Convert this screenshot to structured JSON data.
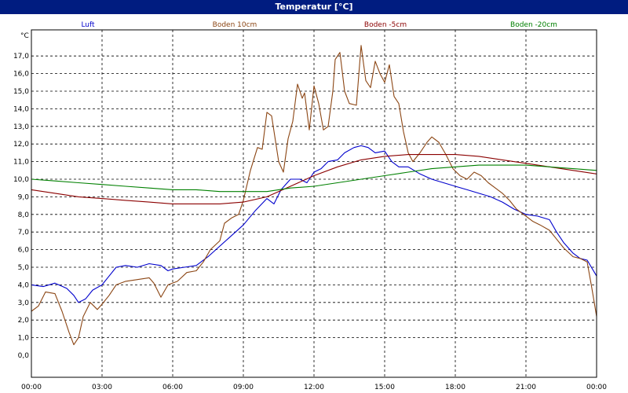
{
  "window": {
    "title": "Temperatur [°C]"
  },
  "chart_data": {
    "type": "line",
    "title": "Temperatur [°C]",
    "ylabel": "°C",
    "ylim": [
      0,
      18
    ],
    "xlim_hours": [
      0,
      24
    ],
    "grid": true,
    "legend_position": "top",
    "y_ticks": [
      "0,0",
      "1,0",
      "2,0",
      "3,0",
      "4,0",
      "5,0",
      "6,0",
      "7,0",
      "8,0",
      "9,0",
      "10,0",
      "11,0",
      "12,0",
      "13,0",
      "14,0",
      "15,0",
      "16,0",
      "17,0"
    ],
    "x_ticks": [
      {
        "time": "00:00",
        "date": "06.05.21"
      },
      {
        "time": "03:00",
        "date": "06.05.21"
      },
      {
        "time": "06:00",
        "date": "06.05.21"
      },
      {
        "time": "09:00",
        "date": "06.05.21"
      },
      {
        "time": "12:00",
        "date": "06.05.21"
      },
      {
        "time": "15:00",
        "date": "06.05.21"
      },
      {
        "time": "18:00",
        "date": "06.05.21"
      },
      {
        "time": "21:00",
        "date": "06.05.21"
      },
      {
        "time": "00:00",
        "date": "07.05.21"
      }
    ],
    "series": [
      {
        "name": "Luft",
        "color": "#0000cc",
        "points": [
          [
            0,
            4.0
          ],
          [
            0.5,
            3.9
          ],
          [
            1.0,
            4.1
          ],
          [
            1.5,
            3.8
          ],
          [
            1.8,
            3.4
          ],
          [
            2.0,
            3.0
          ],
          [
            2.3,
            3.2
          ],
          [
            2.6,
            3.7
          ],
          [
            3.0,
            4.0
          ],
          [
            3.3,
            4.5
          ],
          [
            3.6,
            5.0
          ],
          [
            4.0,
            5.1
          ],
          [
            4.5,
            5.0
          ],
          [
            5.0,
            5.2
          ],
          [
            5.5,
            5.1
          ],
          [
            5.8,
            4.8
          ],
          [
            6.0,
            4.9
          ],
          [
            6.5,
            5.0
          ],
          [
            7.0,
            5.1
          ],
          [
            7.5,
            5.6
          ],
          [
            8.0,
            6.2
          ],
          [
            8.5,
            6.8
          ],
          [
            9.0,
            7.4
          ],
          [
            9.5,
            8.2
          ],
          [
            10.0,
            8.9
          ],
          [
            10.3,
            8.6
          ],
          [
            10.6,
            9.4
          ],
          [
            11.0,
            10.0
          ],
          [
            11.4,
            10.0
          ],
          [
            11.7,
            9.8
          ],
          [
            12.0,
            10.4
          ],
          [
            12.3,
            10.6
          ],
          [
            12.6,
            11.0
          ],
          [
            13.0,
            11.1
          ],
          [
            13.3,
            11.5
          ],
          [
            13.7,
            11.8
          ],
          [
            14.0,
            11.9
          ],
          [
            14.3,
            11.8
          ],
          [
            14.6,
            11.5
          ],
          [
            15.0,
            11.6
          ],
          [
            15.3,
            11.0
          ],
          [
            15.6,
            10.7
          ],
          [
            16.0,
            10.7
          ],
          [
            16.5,
            10.3
          ],
          [
            17.0,
            10.0
          ],
          [
            17.5,
            9.8
          ],
          [
            18.0,
            9.6
          ],
          [
            18.5,
            9.4
          ],
          [
            19.0,
            9.2
          ],
          [
            19.5,
            9.0
          ],
          [
            20.0,
            8.7
          ],
          [
            20.5,
            8.3
          ],
          [
            21.0,
            8.0
          ],
          [
            21.5,
            7.9
          ],
          [
            22.0,
            7.7
          ],
          [
            22.3,
            7.0
          ],
          [
            22.6,
            6.4
          ],
          [
            23.0,
            5.8
          ],
          [
            23.3,
            5.5
          ],
          [
            23.6,
            5.4
          ],
          [
            24.0,
            4.5
          ]
        ]
      },
      {
        "name": "Boden 10cm",
        "color": "#8b4513",
        "points": [
          [
            0,
            2.5
          ],
          [
            0.3,
            2.8
          ],
          [
            0.6,
            3.6
          ],
          [
            1.0,
            3.5
          ],
          [
            1.3,
            2.5
          ],
          [
            1.6,
            1.3
          ],
          [
            1.8,
            0.6
          ],
          [
            2.0,
            1.0
          ],
          [
            2.2,
            2.2
          ],
          [
            2.5,
            3.0
          ],
          [
            2.8,
            2.6
          ],
          [
            3.0,
            2.9
          ],
          [
            3.3,
            3.4
          ],
          [
            3.6,
            4.0
          ],
          [
            4.0,
            4.2
          ],
          [
            4.5,
            4.3
          ],
          [
            5.0,
            4.4
          ],
          [
            5.2,
            4.1
          ],
          [
            5.5,
            3.3
          ],
          [
            5.8,
            4.0
          ],
          [
            6.2,
            4.2
          ],
          [
            6.6,
            4.7
          ],
          [
            7.0,
            4.8
          ],
          [
            7.3,
            5.3
          ],
          [
            7.6,
            6.0
          ],
          [
            8.0,
            6.5
          ],
          [
            8.2,
            7.5
          ],
          [
            8.5,
            7.8
          ],
          [
            8.8,
            8.0
          ],
          [
            9.0,
            8.8
          ],
          [
            9.3,
            10.5
          ],
          [
            9.6,
            11.8
          ],
          [
            9.8,
            11.7
          ],
          [
            10.0,
            13.8
          ],
          [
            10.2,
            13.6
          ],
          [
            10.5,
            11.0
          ],
          [
            10.7,
            10.4
          ],
          [
            10.9,
            12.3
          ],
          [
            11.1,
            13.3
          ],
          [
            11.3,
            15.4
          ],
          [
            11.5,
            14.6
          ],
          [
            11.6,
            14.9
          ],
          [
            11.8,
            12.8
          ],
          [
            12.0,
            15.3
          ],
          [
            12.2,
            14.3
          ],
          [
            12.4,
            12.8
          ],
          [
            12.6,
            13.0
          ],
          [
            12.8,
            15.0
          ],
          [
            12.9,
            16.8
          ],
          [
            13.1,
            17.2
          ],
          [
            13.3,
            15.0
          ],
          [
            13.5,
            14.3
          ],
          [
            13.8,
            14.2
          ],
          [
            14.0,
            17.6
          ],
          [
            14.2,
            15.6
          ],
          [
            14.4,
            15.2
          ],
          [
            14.6,
            16.7
          ],
          [
            14.8,
            16.0
          ],
          [
            15.0,
            15.5
          ],
          [
            15.2,
            16.5
          ],
          [
            15.4,
            14.7
          ],
          [
            15.6,
            14.3
          ],
          [
            15.8,
            12.7
          ],
          [
            16.0,
            11.5
          ],
          [
            16.2,
            11.0
          ],
          [
            16.5,
            11.5
          ],
          [
            16.8,
            12.1
          ],
          [
            17.0,
            12.4
          ],
          [
            17.3,
            12.1
          ],
          [
            17.6,
            11.4
          ],
          [
            17.9,
            10.6
          ],
          [
            18.2,
            10.2
          ],
          [
            18.5,
            10.0
          ],
          [
            18.8,
            10.4
          ],
          [
            19.1,
            10.2
          ],
          [
            19.4,
            9.8
          ],
          [
            19.7,
            9.5
          ],
          [
            20.0,
            9.2
          ],
          [
            20.3,
            8.8
          ],
          [
            20.6,
            8.3
          ],
          [
            21.0,
            7.9
          ],
          [
            21.3,
            7.6
          ],
          [
            21.6,
            7.4
          ],
          [
            22.0,
            7.1
          ],
          [
            22.3,
            6.6
          ],
          [
            22.6,
            6.1
          ],
          [
            23.0,
            5.6
          ],
          [
            23.3,
            5.5
          ],
          [
            23.6,
            5.3
          ],
          [
            23.8,
            3.8
          ],
          [
            24.0,
            2.2
          ]
        ]
      },
      {
        "name": "Boden -5cm",
        "color": "#8b0000",
        "points": [
          [
            0,
            9.4
          ],
          [
            1.0,
            9.2
          ],
          [
            2.0,
            9.0
          ],
          [
            3.0,
            8.9
          ],
          [
            4.0,
            8.8
          ],
          [
            5.0,
            8.7
          ],
          [
            6.0,
            8.6
          ],
          [
            7.0,
            8.6
          ],
          [
            8.0,
            8.6
          ],
          [
            9.0,
            8.7
          ],
          [
            10.0,
            9.0
          ],
          [
            11.0,
            9.6
          ],
          [
            12.0,
            10.2
          ],
          [
            13.0,
            10.7
          ],
          [
            14.0,
            11.1
          ],
          [
            15.0,
            11.3
          ],
          [
            16.0,
            11.4
          ],
          [
            17.0,
            11.4
          ],
          [
            18.0,
            11.4
          ],
          [
            19.0,
            11.3
          ],
          [
            20.0,
            11.1
          ],
          [
            21.0,
            10.9
          ],
          [
            22.0,
            10.7
          ],
          [
            23.0,
            10.5
          ],
          [
            24.0,
            10.3
          ]
        ]
      },
      {
        "name": "Boden -20cm",
        "color": "#008000",
        "points": [
          [
            0,
            10.0
          ],
          [
            1.0,
            9.9
          ],
          [
            2.0,
            9.8
          ],
          [
            3.0,
            9.7
          ],
          [
            4.0,
            9.6
          ],
          [
            5.0,
            9.5
          ],
          [
            6.0,
            9.4
          ],
          [
            7.0,
            9.4
          ],
          [
            8.0,
            9.3
          ],
          [
            9.0,
            9.3
          ],
          [
            10.0,
            9.3
          ],
          [
            11.0,
            9.5
          ],
          [
            12.0,
            9.6
          ],
          [
            13.0,
            9.8
          ],
          [
            14.0,
            10.0
          ],
          [
            15.0,
            10.2
          ],
          [
            16.0,
            10.4
          ],
          [
            17.0,
            10.6
          ],
          [
            18.0,
            10.7
          ],
          [
            19.0,
            10.8
          ],
          [
            20.0,
            10.8
          ],
          [
            21.0,
            10.8
          ],
          [
            22.0,
            10.7
          ],
          [
            23.0,
            10.6
          ],
          [
            24.0,
            10.5
          ]
        ]
      }
    ]
  }
}
